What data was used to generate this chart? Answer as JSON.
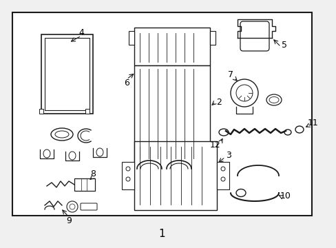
{
  "bg_color": "#f0f0f0",
  "border_color": "#1a1a1a",
  "line_color": "#1a1a1a",
  "text_color": "#000000",
  "fig_width": 4.89,
  "fig_height": 3.6,
  "dpi": 100,
  "bottom_label": "1"
}
